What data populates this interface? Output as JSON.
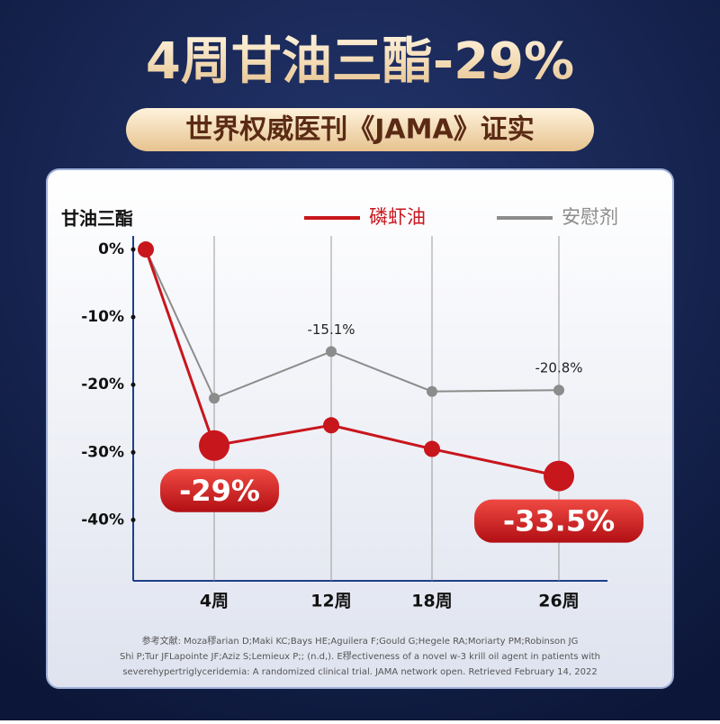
{
  "title": "4周甘油三酯-29%",
  "subtitle": "世界权威医刊《JAMA》证实",
  "chart_data": {
    "type": "line",
    "y_label": "甘油三酯",
    "categories": [
      null,
      "4周",
      "12周",
      "18周",
      "26周"
    ],
    "series": [
      {
        "name": "磷虾油",
        "color": "#c8161d",
        "values": [
          0,
          -29,
          -26,
          -29.5,
          -33.5
        ],
        "value_labels": [
          null,
          "-29%",
          null,
          null,
          "-33.5%"
        ]
      },
      {
        "name": "安慰剂",
        "color": "#8c8c8c",
        "values": [
          0,
          -22,
          -15.1,
          -21,
          -20.8
        ],
        "value_labels": [
          null,
          null,
          "-15.1%",
          null,
          "-20.8%"
        ]
      }
    ],
    "ylim": [
      -49,
      2
    ],
    "yticks": [
      {
        "value": 0,
        "label": "0%"
      },
      {
        "value": -10,
        "label": "-10%"
      },
      {
        "value": -20,
        "label": "-20%"
      },
      {
        "value": -30,
        "label": "-30%"
      },
      {
        "value": -40,
        "label": "-40%"
      }
    ],
    "grid": true
  },
  "references": [
    "参考文献: Moza穋arian D;Maki KC;Bays HE;Aguilera F;Gould G;Hegele RA;Moriarty PM;Robinson JG",
    "Shi P;Tur JFLapointe JF;Aziz S;Lemieux P;; (n.d,). E穋ectiveness of a novel w-3 krill oil agent in patients with",
    "severehypertriglyceridemia: A randomized clinical trial. JAMA network open. Retrieved February 14, 2022"
  ]
}
